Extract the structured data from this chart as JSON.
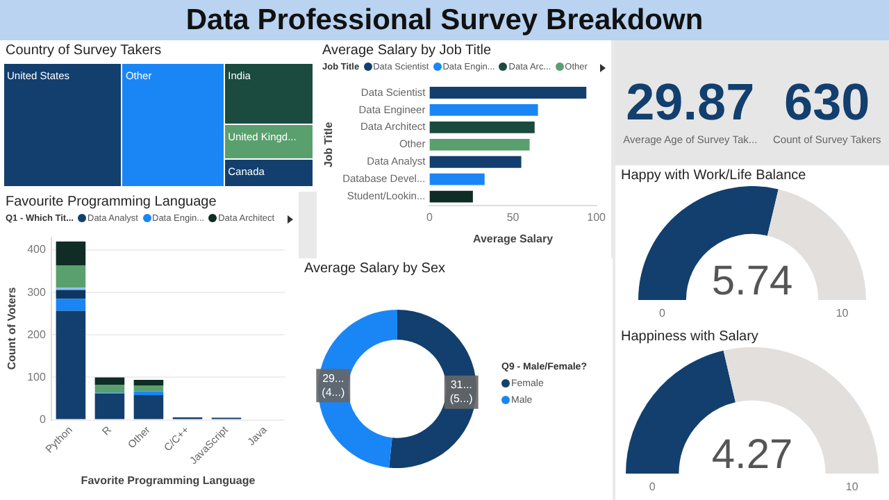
{
  "chart_data": [
    {
      "type": "other",
      "title": "Data Professional Survey Breakdown"
    },
    {
      "type": "other",
      "title": "Country of Survey Takers",
      "categories": [
        "United States",
        "Other",
        "India",
        "United Kingd...",
        "Canada"
      ],
      "colors": [
        "#123f6e",
        "#1a86f5",
        "#1b4a3e",
        "#5aa06e",
        "#123f6e"
      ]
    },
    {
      "type": "bar",
      "orientation": "horizontal",
      "title": "Average Salary by Job Title",
      "legend_title": "Job Title",
      "legend": "top",
      "categories": [
        "Data Scientist",
        "Data Engineer",
        "Data Architect",
        "Other",
        "Data Analyst",
        "Database Devel...",
        "Student/Lookin..."
      ],
      "series": [
        {
          "name": "Data Scientist",
          "color": "#123f6e",
          "values": [
            94,
            null,
            null,
            null,
            null,
            null,
            null
          ]
        },
        {
          "name": "Data Engin...",
          "color": "#1a86f5",
          "values": [
            null,
            65,
            null,
            null,
            null,
            null,
            null
          ]
        },
        {
          "name": "Data Arc...",
          "color": "#1b4a3e",
          "values": [
            null,
            null,
            63,
            null,
            null,
            null,
            null
          ]
        },
        {
          "name": "Other",
          "color": "#5aa06e",
          "values": [
            null,
            null,
            null,
            60,
            null,
            null,
            null
          ]
        },
        {
          "color": "#123f6e",
          "values": [
            null,
            null,
            null,
            null,
            55,
            null,
            null
          ]
        },
        {
          "color": "#1a86f5",
          "values": [
            null,
            null,
            null,
            null,
            null,
            33,
            null
          ]
        },
        {
          "color": "#0f2c25",
          "values": [
            null,
            null,
            null,
            null,
            null,
            null,
            26
          ]
        }
      ],
      "xlim": [
        0,
        100
      ],
      "xticks": [
        0,
        50,
        100
      ],
      "xlabel": "Average Salary",
      "ylabel": "Job Title"
    },
    {
      "type": "other",
      "categories": [
        "Average Age of Survey Tak...",
        "Count of Survey Takers"
      ],
      "values": [
        29.87,
        630
      ],
      "data_labels": true
    },
    {
      "type": "bar",
      "stacked": true,
      "title": "Favourite Programming Language",
      "legend_title": "Q1 - Which Tit...",
      "legend": "top",
      "categories": [
        "Python",
        "R",
        "Other",
        "C/C++",
        "JavaScript",
        "Java"
      ],
      "series": [
        {
          "name": "Data Analyst",
          "color": "#123f6e",
          "values": [
            257,
            62,
            58,
            6,
            5,
            null
          ]
        },
        {
          "name": "Data Engin...",
          "color": "#1a86f5",
          "values": [
            28,
            2,
            9,
            null,
            null,
            null
          ]
        },
        {
          "color": "#0d3763",
          "values": [
            21,
            null,
            null,
            null,
            null,
            null
          ]
        },
        {
          "color": "#8fc1ee",
          "values": [
            5,
            null,
            null,
            null,
            null,
            null
          ]
        },
        {
          "color": "#5aa06e",
          "values": [
            53,
            18,
            14,
            null,
            null,
            null
          ]
        },
        {
          "name": "Data Architect",
          "color": "#0f2c25",
          "values": [
            56,
            18,
            13,
            null,
            null,
            null
          ]
        }
      ],
      "ylim": [
        0,
        430
      ],
      "yticks": [
        0,
        100,
        200,
        300,
        400
      ],
      "grid": "y",
      "xlabel": "Favorite Programming Language",
      "ylabel": "Count of Voters"
    },
    {
      "type": "donut",
      "title": "Average Salary by Sex",
      "legend_title": "Q9 - Male/Female?",
      "legend": "right",
      "categories": [
        "Female",
        "Male"
      ],
      "values": [
        31,
        29
      ],
      "colors": [
        "#123f6e",
        "#1a86f5"
      ],
      "value_labels": [
        "31...\n(5...)",
        "29...\n(4...)"
      ]
    },
    {
      "type": "donut",
      "title": "Happy with Work/Life Balance",
      "categories": [
        null,
        null
      ],
      "values": [
        57.4,
        42.6
      ],
      "colors": [
        "#123f6e",
        "#e3dfdc"
      ],
      "annotations": [
        "5.74",
        "0",
        "10"
      ]
    },
    {
      "type": "donut",
      "title": "Happiness with Salary",
      "categories": [
        null,
        null
      ],
      "values": [
        42.7,
        57.3
      ],
      "colors": [
        "#123f6e",
        "#e3dfdc"
      ],
      "annotations": [
        "4.27",
        "0",
        "10"
      ]
    }
  ]
}
